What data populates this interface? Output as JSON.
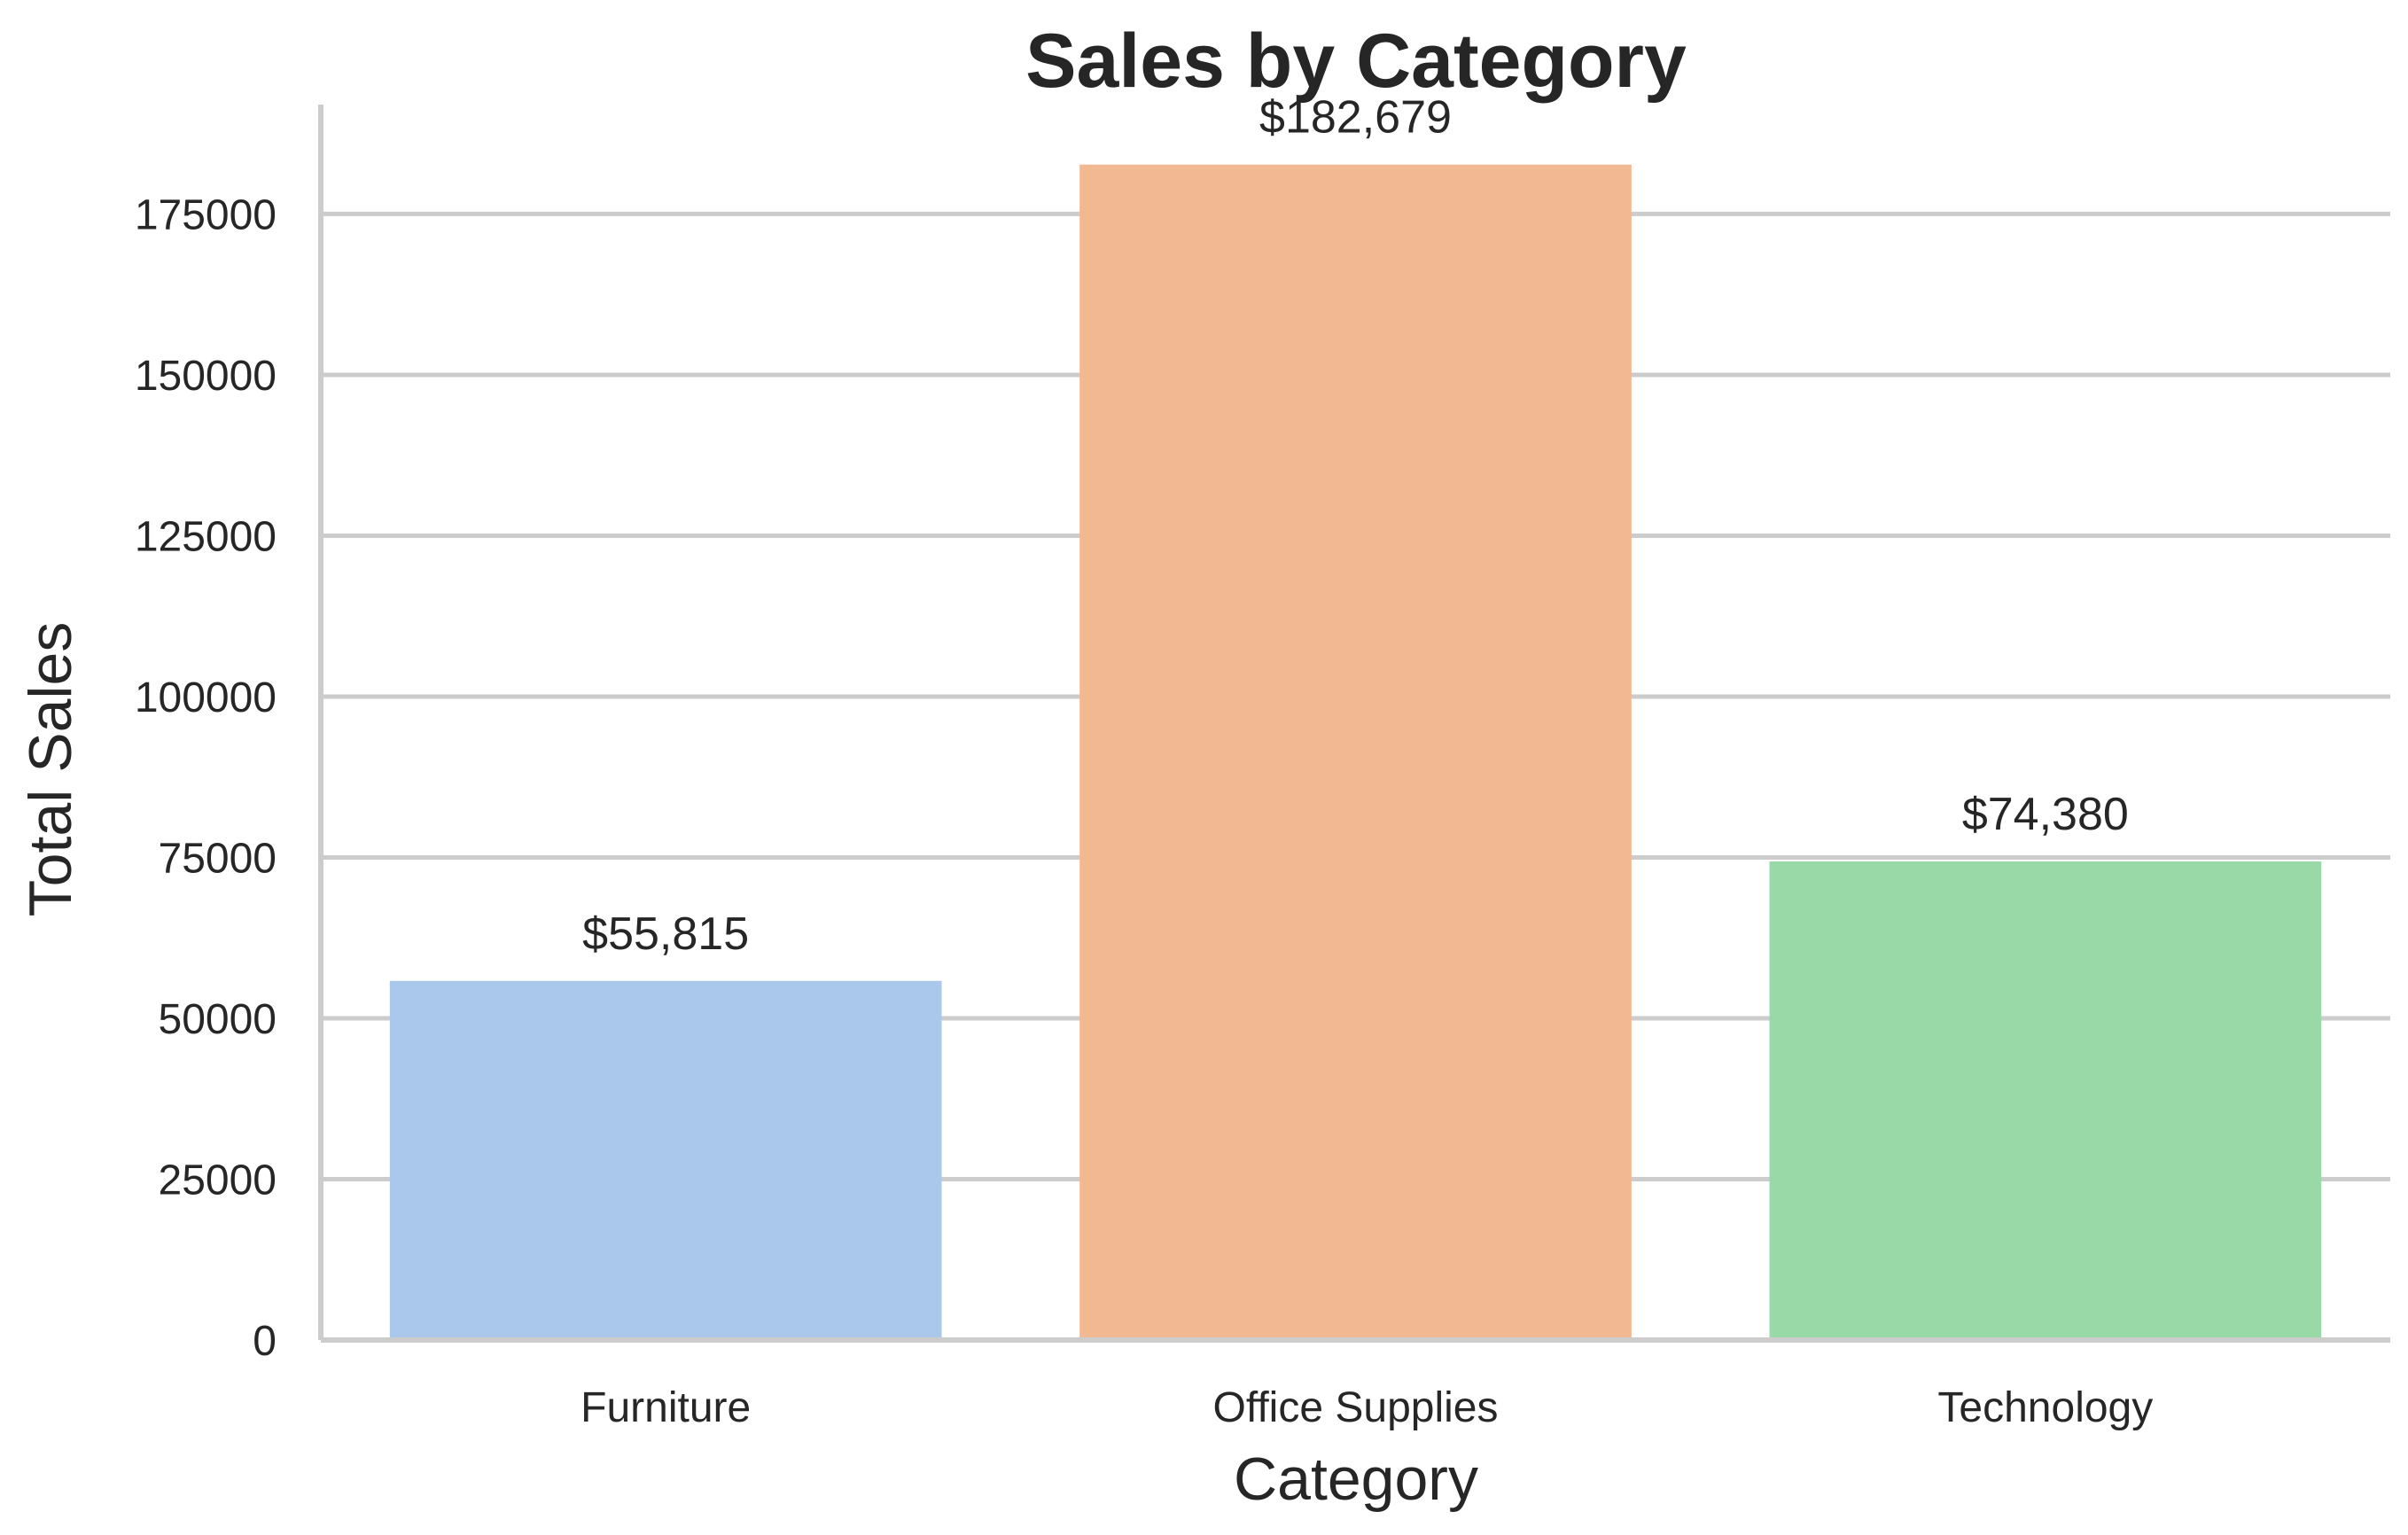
{
  "chart_data": {
    "type": "bar",
    "title": "Sales by Category",
    "xlabel": "Category",
    "ylabel": "Total Sales",
    "categories": [
      "Furniture",
      "Office Supplies",
      "Technology"
    ],
    "values": [
      55815,
      182679,
      74380
    ],
    "value_labels": [
      "$55,815",
      "$182,679",
      "$74,380"
    ],
    "colors": [
      "#a9c8ec",
      "#f1b892",
      "#99d9a8"
    ],
    "yticks": [
      0,
      25000,
      50000,
      75000,
      100000,
      125000,
      150000,
      175000
    ],
    "ylim": [
      0,
      192000
    ],
    "grid": true,
    "grid_color": "#cccccc",
    "text_color": "#262626"
  }
}
